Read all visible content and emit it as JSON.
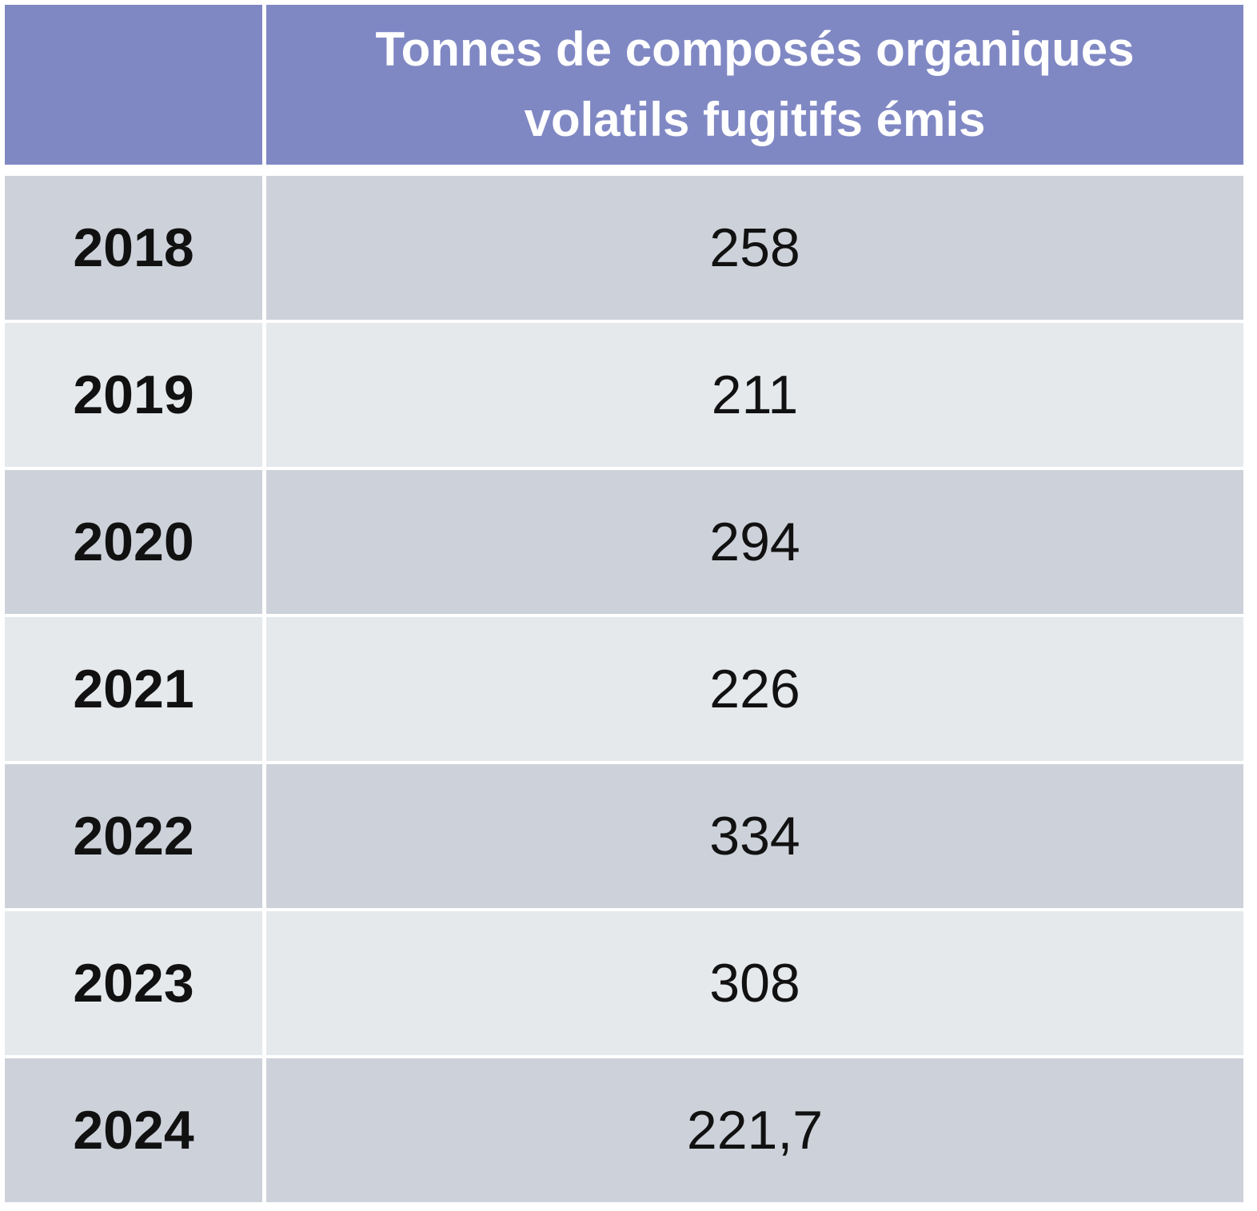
{
  "table": {
    "header": {
      "title": "Tonnes de composés organiques volatils fugitifs émis"
    },
    "rows": [
      [
        "2018",
        "258"
      ],
      [
        "2019",
        "211"
      ],
      [
        "2020",
        "294"
      ],
      [
        "2021",
        "226"
      ],
      [
        "2022",
        "334"
      ],
      [
        "2023",
        "308"
      ],
      [
        "2024",
        "221,7"
      ]
    ]
  }
}
